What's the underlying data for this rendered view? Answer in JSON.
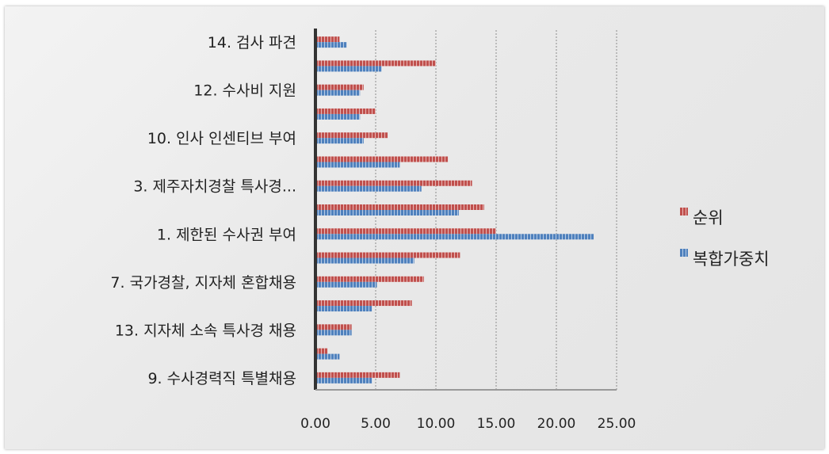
{
  "chart_data": {
    "type": "bar",
    "orientation": "horizontal",
    "categories": [
      "9. 수사경력직 특별채용",
      "",
      "13. 지자체 소속 특사경 채용",
      "",
      "7. 국가경찰, 지자체 혼합채용",
      "",
      "1. 제한된 수사권 부여",
      "",
      "3. 제주자치경찰 특사경...",
      "",
      "10. 인사 인센티브 부여",
      "",
      "12. 수사비 지원",
      "",
      "14. 검사 파견"
    ],
    "series": [
      {
        "name": "순위",
        "color": "#c0504d",
        "values": [
          7,
          1,
          3,
          8,
          9,
          12,
          15,
          14,
          13,
          11,
          6,
          5,
          4,
          10,
          2
        ]
      },
      {
        "name": "복합가중치",
        "color": "#4f81bd",
        "values": [
          4.7,
          2.0,
          3.0,
          4.7,
          5.1,
          8.2,
          23.1,
          11.9,
          8.8,
          7.0,
          4.0,
          3.7,
          3.7,
          5.5,
          2.6
        ]
      }
    ],
    "xlim": [
      0,
      25
    ],
    "x_ticks": [
      "0.00",
      "5.00",
      "10.00",
      "15.00",
      "20.00",
      "25.00"
    ],
    "grid": "vertical dotted",
    "legend_position": "right"
  }
}
